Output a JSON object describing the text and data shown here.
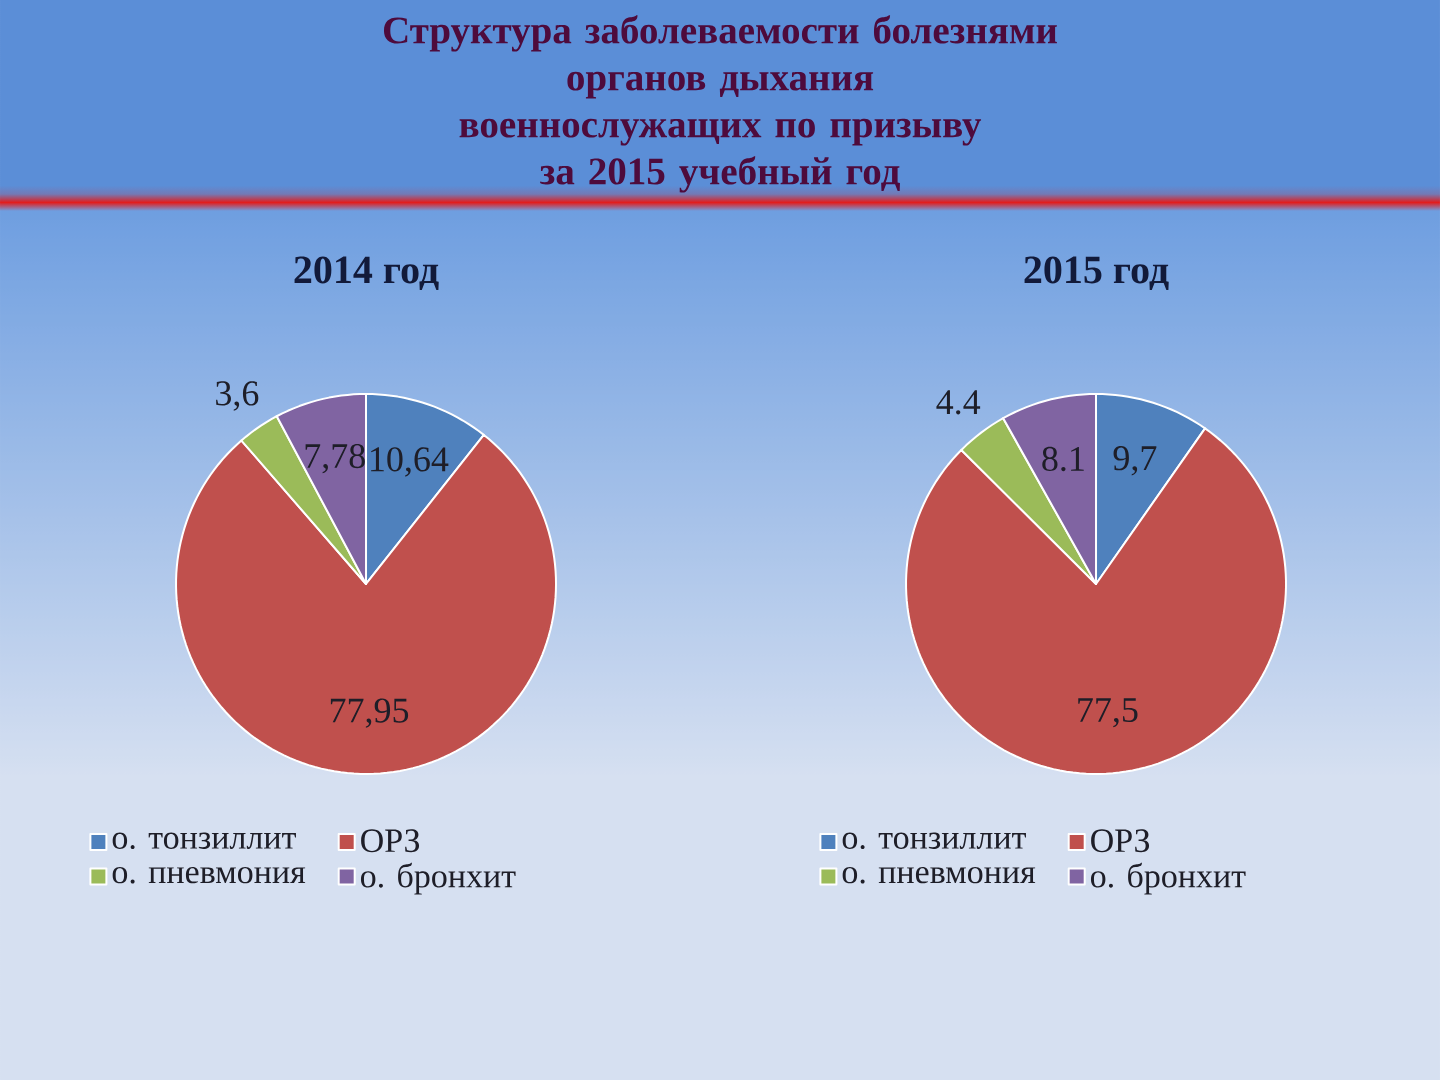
{
  "chart_data": [
    {
      "type": "other",
      "title": "Структура заболеваемости болезнями\nорганов дыхания\nвоеннослужащих по призыву\nза 2015 учебный год"
    },
    {
      "type": "pie",
      "title": "2014 год",
      "categories": [
        "о. тонзиллит",
        "ОРЗ",
        "о. пневмония",
        "о. бронхит"
      ],
      "values": [
        10.64,
        77.95,
        3.6,
        7.78
      ],
      "colors": [
        "#4f81bd",
        "#c0504d",
        "#9bbb59",
        "#8064a2"
      ],
      "value_labels": [
        "10,64",
        "77,95",
        "3,6",
        "7,78"
      ],
      "legend": "bottom"
    },
    {
      "type": "pie",
      "title": "2015 год",
      "categories": [
        "о. тонзиллит",
        "ОРЗ",
        "о. пневмония",
        "о. бронхит"
      ],
      "values": [
        9.7,
        77.5,
        4.4,
        8.1
      ],
      "colors": [
        "#4f81bd",
        "#c0504d",
        "#9bbb59",
        "#8064a2"
      ],
      "value_labels": [
        "9,7",
        "77,5",
        "4.4",
        "8.1"
      ],
      "legend": "bottom"
    }
  ]
}
